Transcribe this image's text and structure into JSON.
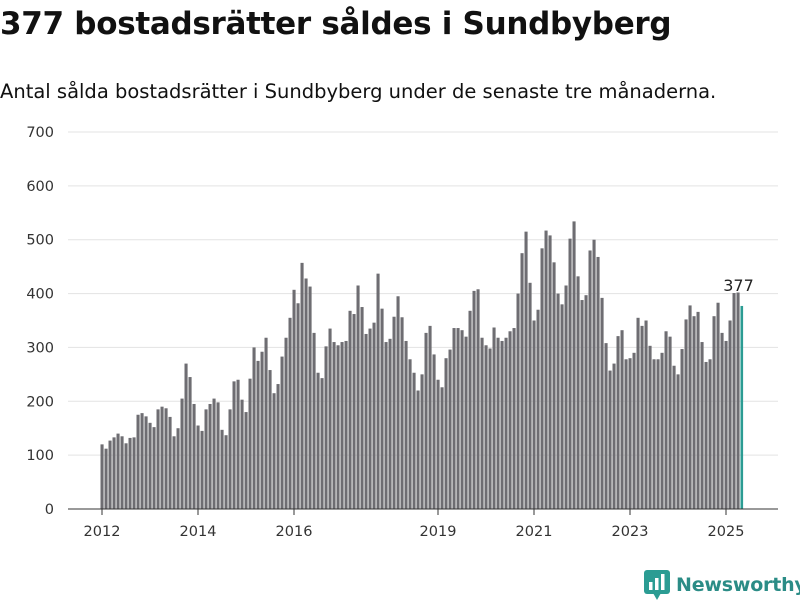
{
  "brand": {
    "name": "Newsworthy",
    "accent": "#2b9c93",
    "bar_color": "#6e6d72"
  },
  "chart_data": {
    "type": "bar",
    "title": "377 bostadsrätter såldes i Sundbyberg",
    "subtitle": "Antal sålda bostadsrätter i Sundbyberg under de senaste tre månaderna.",
    "xlabel": "",
    "ylabel": "",
    "ylim": [
      0,
      700
    ],
    "yticks": [
      0,
      100,
      200,
      300,
      400,
      500,
      600,
      700
    ],
    "xtick_labels": [
      "2012",
      "2014",
      "2016",
      "2019",
      "2021",
      "2023",
      "2025"
    ],
    "grid": true,
    "annotation": "377",
    "series": [
      {
        "values": [
          120,
          112,
          127,
          133,
          140,
          135,
          122,
          132,
          133,
          175,
          178,
          172,
          160,
          152,
          185,
          190,
          187,
          171,
          135,
          150,
          205,
          270,
          245,
          195,
          155,
          145,
          185,
          195,
          205,
          198,
          147,
          137,
          185,
          237,
          240,
          203,
          180,
          242,
          300,
          275,
          292,
          318,
          258,
          215,
          232,
          283,
          318,
          355,
          407,
          382,
          457,
          428,
          413,
          327,
          253,
          243,
          302,
          335,
          310,
          304,
          310,
          312,
          368,
          362,
          415,
          375,
          325,
          335,
          346,
          437,
          372,
          310,
          316,
          357,
          395,
          356,
          312,
          278,
          253,
          220,
          250,
          327,
          340,
          287,
          240,
          226,
          280,
          296,
          336,
          336,
          332,
          320,
          368,
          405,
          408,
          318,
          304,
          298,
          337,
          318,
          312,
          318,
          330,
          336,
          400,
          475,
          515,
          420,
          350,
          370,
          484,
          517,
          508,
          458,
          400,
          380,
          415,
          502,
          534,
          432,
          388,
          397,
          480,
          500,
          468,
          392,
          308,
          257,
          270,
          321,
          332,
          278,
          280,
          290,
          355,
          340,
          350,
          303,
          278,
          278,
          290,
          330,
          320,
          266,
          250,
          297,
          352,
          378,
          358,
          366,
          310,
          273,
          278,
          358,
          383,
          327,
          312,
          350,
          401,
          402,
          377
        ]
      }
    ],
    "highlight_color": "#2b9c93"
  }
}
